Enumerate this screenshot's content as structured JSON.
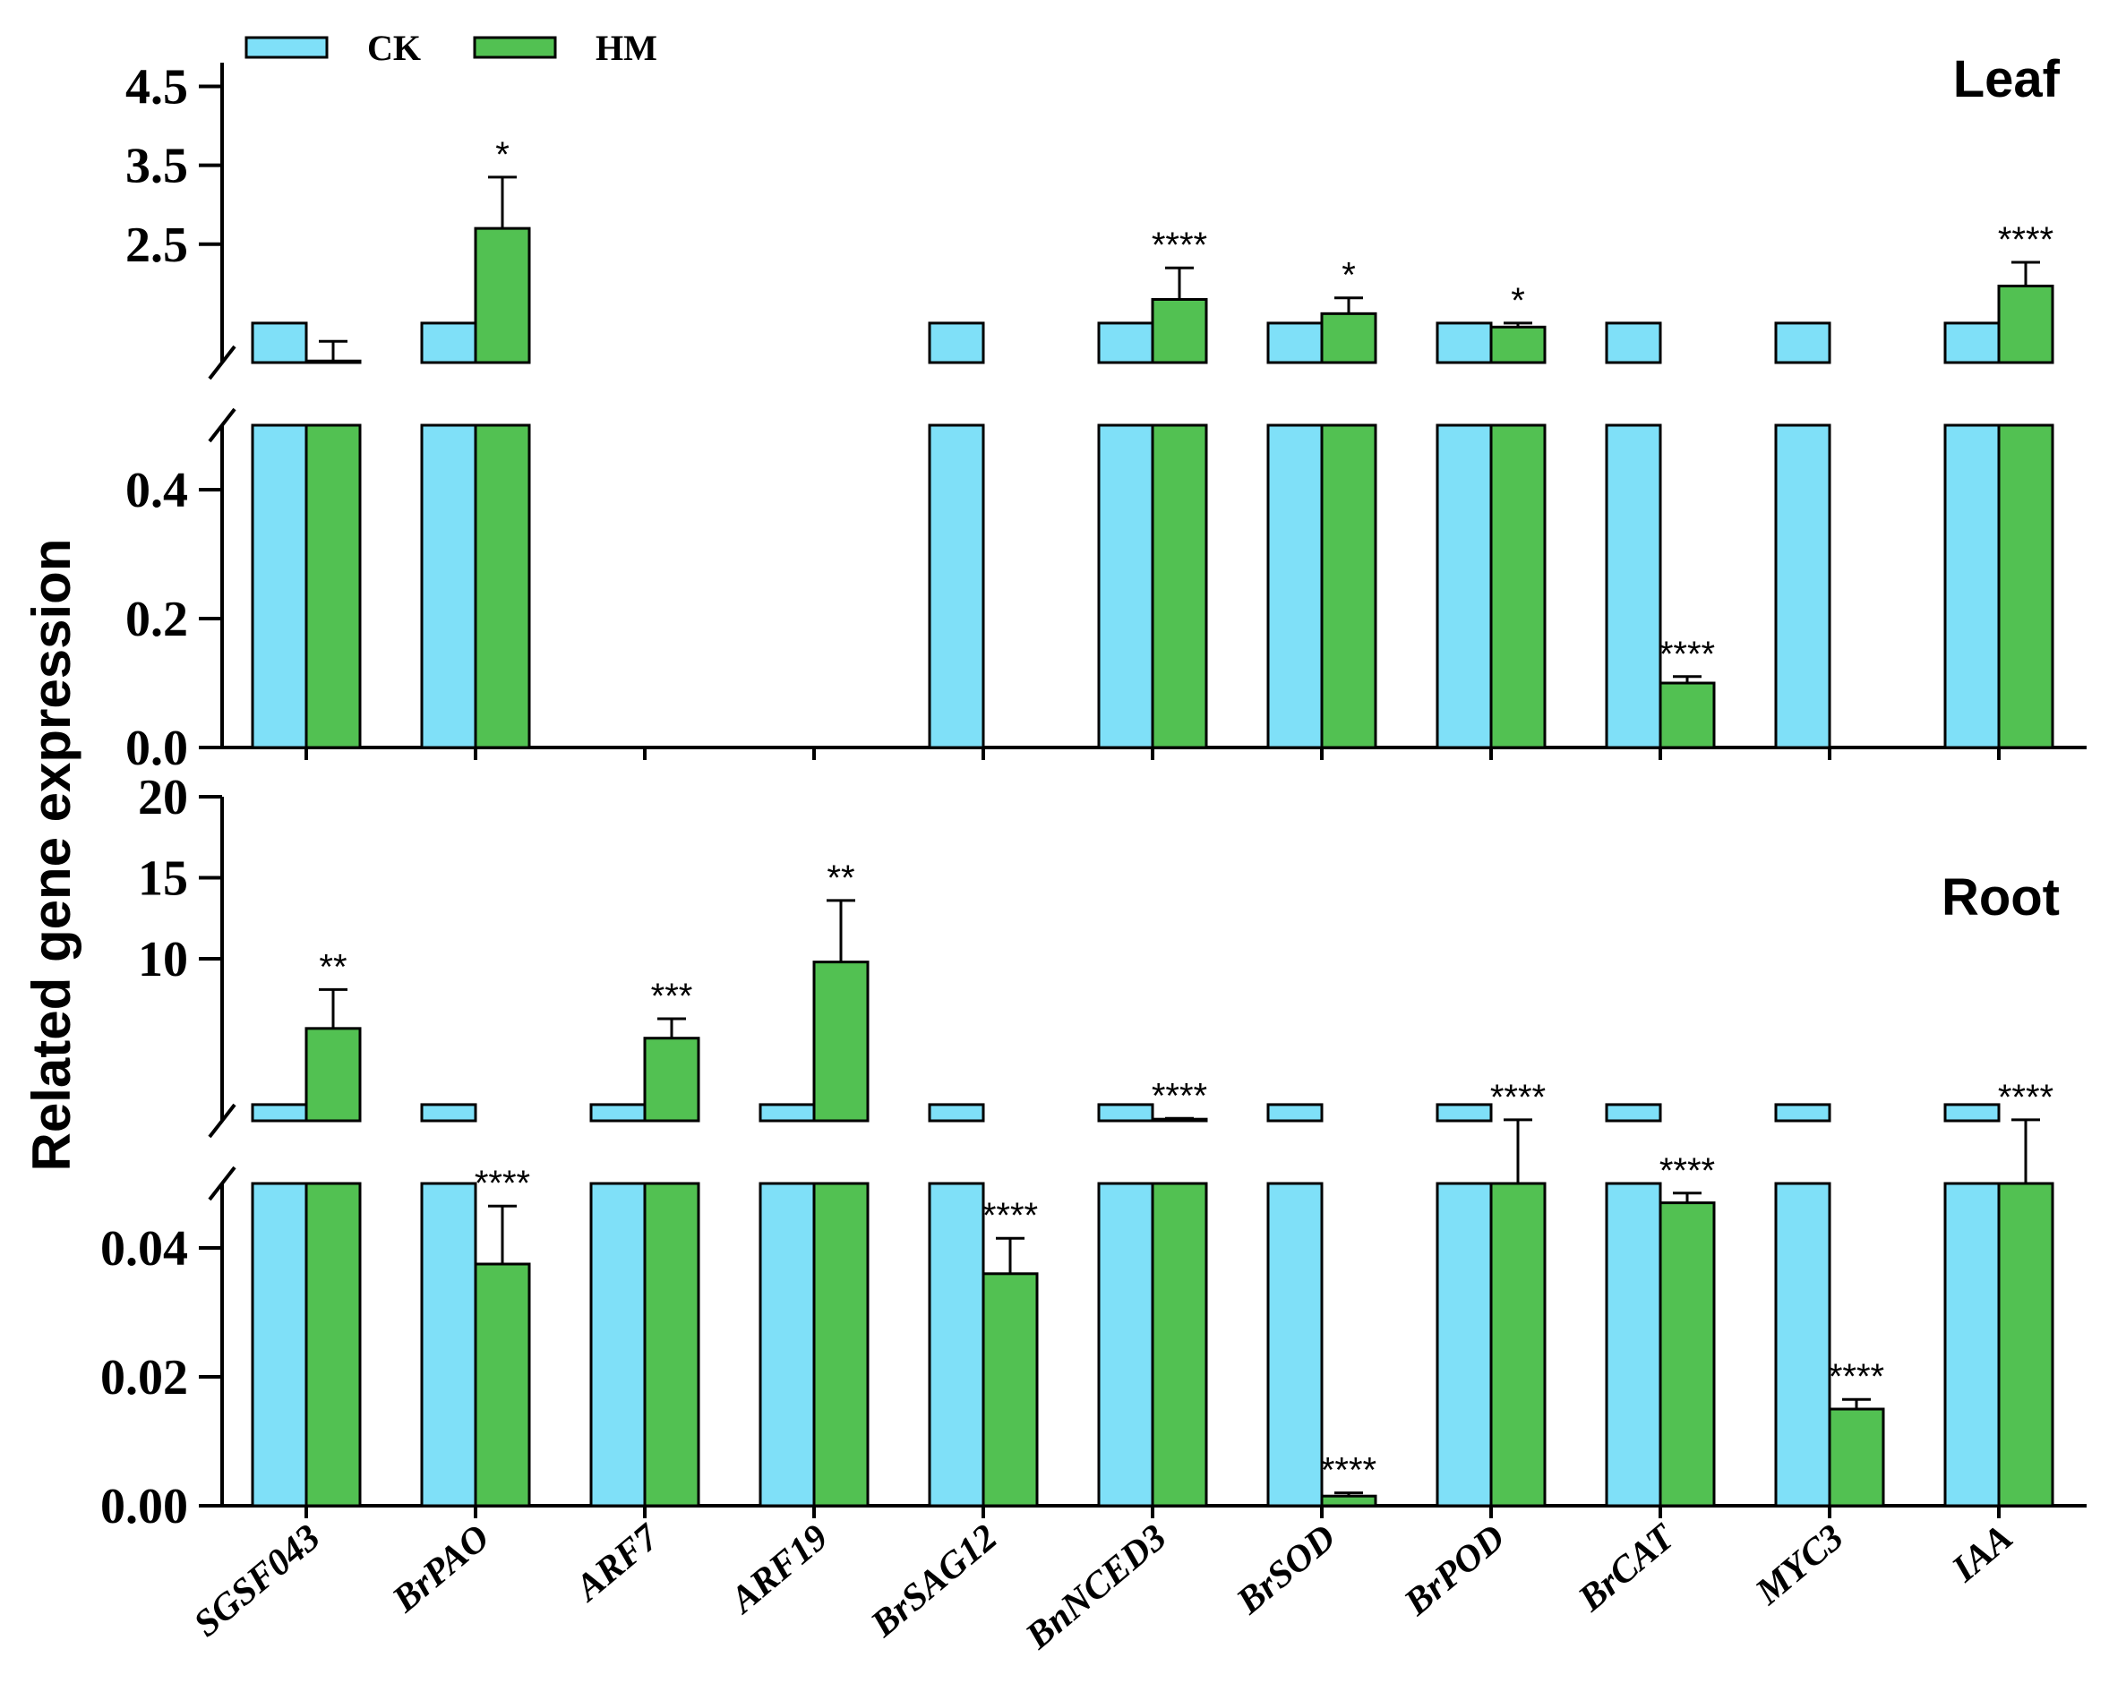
{
  "chart_data": {
    "type": "bar",
    "ylabel": "Related gene expression",
    "categories": [
      "SGSF043",
      "BrPAO",
      "ARF7",
      "ARF19",
      "BrSAG12",
      "BnNCED3",
      "BrSOD",
      "BrPOD",
      "BrCAT",
      "MYC3",
      "IAA"
    ],
    "legend": {
      "position": "top-left",
      "items": [
        {
          "name": "CK",
          "color": "#7fe0f8"
        },
        {
          "name": "HM",
          "color": "#52c152"
        }
      ]
    },
    "colors": {
      "CK": "#7fe0f8",
      "HM": "#52c152"
    },
    "grid": false,
    "panels": [
      {
        "label": "Leaf",
        "broken_axis": {
          "upper": {
            "ylim": [
              1.0,
              4.8
            ],
            "ticks": [
              2.5,
              3.5,
              4.5
            ],
            "tick_labels": [
              "2.5",
              "3.5",
              "4.5"
            ]
          },
          "lower": {
            "ylim": [
              0,
              0.5
            ],
            "ticks": [
              0.0,
              0.2,
              0.4
            ],
            "tick_labels": [
              "0.0",
              "0.2",
              "0.4"
            ]
          }
        },
        "series": [
          {
            "name": "CK",
            "values": [
              1.5,
              1.5,
              null,
              null,
              1.5,
              1.5,
              1.5,
              1.5,
              1.5,
              1.5,
              1.5
            ],
            "errors": [
              0,
              0,
              0,
              0,
              0,
              0,
              0,
              0,
              0,
              0,
              0
            ]
          },
          {
            "name": "HM",
            "values": [
              1.02,
              2.7,
              null,
              null,
              null,
              1.8,
              1.62,
              1.45,
              0.1,
              null,
              1.97
            ],
            "errors": [
              0.25,
              0.65,
              0,
              0,
              0,
              0.4,
              0.2,
              0.05,
              0.01,
              0,
              0.3
            ]
          }
        ],
        "significance": [
          "",
          "*",
          "",
          "",
          "",
          "****",
          "*",
          "*",
          "****",
          "",
          "****"
        ]
      },
      {
        "label": "Root",
        "broken_axis": {
          "upper": {
            "ylim": [
              0,
              20
            ],
            "ticks": [
              10,
              15,
              20
            ],
            "tick_labels": [
              "10",
              "15",
              "20"
            ]
          },
          "lower": {
            "ylim": [
              0,
              0.05
            ],
            "ticks": [
              0.0,
              0.02,
              0.04
            ],
            "tick_labels": [
              "0.00",
              "0.02",
              "0.04"
            ]
          }
        },
        "series": [
          {
            "name": "CK",
            "values": [
              1,
              1,
              1,
              1,
              1,
              1,
              1,
              1,
              1,
              1,
              1
            ],
            "errors": [
              0,
              0,
              0,
              0,
              0,
              0,
              0,
              0,
              0,
              0,
              0
            ]
          },
          {
            "name": "HM",
            "values": [
              5.7,
              0.0375,
              5.1,
              9.8,
              0.036,
              0.1,
              0.0015,
              0.05,
              0.047,
              0.015,
              0.05
            ],
            "errors": [
              2.4,
              0.009,
              1.2,
              3.8,
              0.0055,
              0.05,
              0.0005,
              0.01,
              0.0015,
              0.0015,
              0.01
            ]
          }
        ],
        "significance": [
          "**",
          "****",
          "***",
          "**",
          "****",
          "****",
          "****",
          "****",
          "****",
          "****",
          "****"
        ]
      }
    ]
  }
}
